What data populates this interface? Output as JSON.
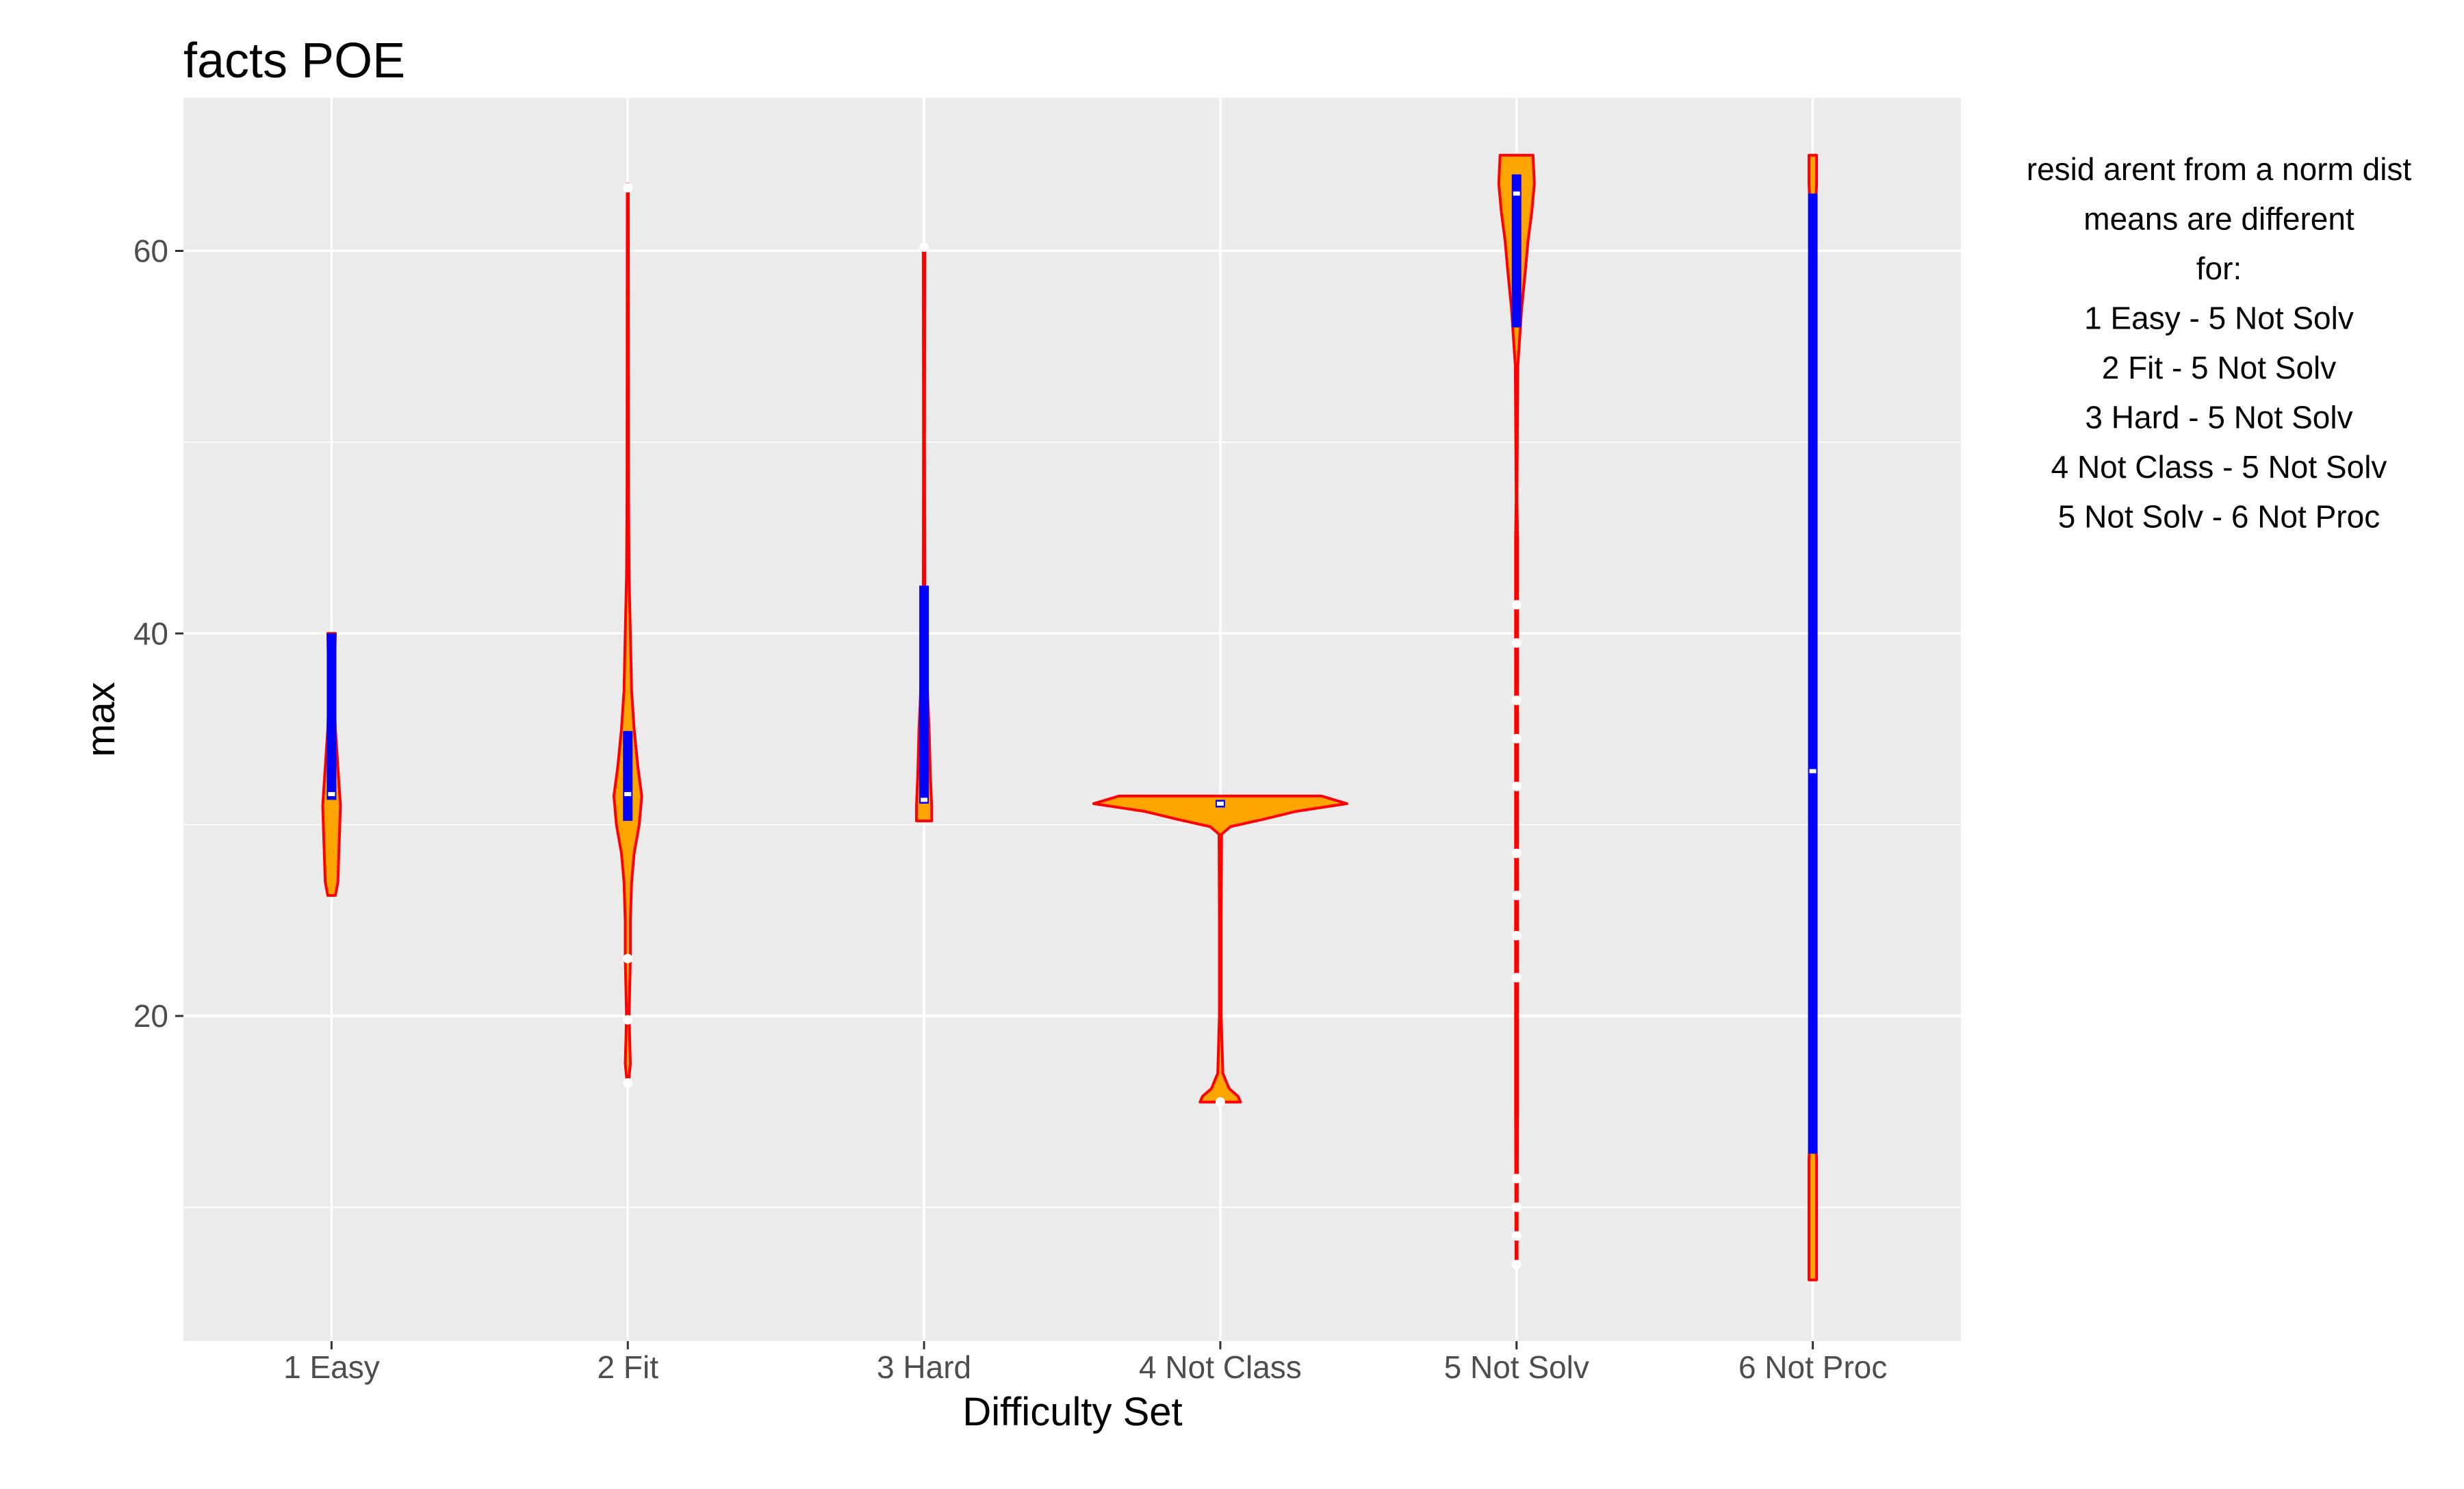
{
  "chart_data": {
    "type": "violin",
    "title": "facts POE",
    "xlabel": "Difficulty Set",
    "ylabel": "max",
    "ylim": [
      3,
      68
    ],
    "y_ticks": [
      20,
      40,
      60
    ],
    "grid": true,
    "categories": [
      "1 Easy",
      "2 Fit",
      "3 Hard",
      "4 Not Class",
      "5 Not Solv",
      "6 Not Proc"
    ],
    "violins": [
      {
        "category": "1 Easy",
        "min": 26.3,
        "max": 40,
        "profile": [
          [
            26.3,
            0.03
          ],
          [
            27,
            0.05
          ],
          [
            29,
            0.06
          ],
          [
            31,
            0.07
          ],
          [
            33,
            0.05
          ],
          [
            35,
            0.03
          ],
          [
            37,
            0.02
          ],
          [
            40,
            0.03
          ]
        ],
        "box": {
          "q1": 31.3,
          "median": 31.6,
          "q3": 40
        },
        "outliers": []
      },
      {
        "category": "2 Fit",
        "min": 16.5,
        "max": 63.5,
        "profile": [
          [
            16.5,
            0.005
          ],
          [
            17.5,
            0.02
          ],
          [
            20,
            0.01
          ],
          [
            23,
            0.02
          ],
          [
            25,
            0.02
          ],
          [
            27,
            0.03
          ],
          [
            28.5,
            0.05
          ],
          [
            30,
            0.09
          ],
          [
            31.5,
            0.11
          ],
          [
            33,
            0.08
          ],
          [
            35,
            0.05
          ],
          [
            37,
            0.03
          ],
          [
            40,
            0.02
          ],
          [
            43,
            0.01
          ],
          [
            47,
            0.006
          ],
          [
            55,
            0.005
          ],
          [
            63.5,
            0.004
          ]
        ],
        "box": {
          "q1": 30.2,
          "median": 31.6,
          "q3": 34.9
        },
        "outliers": [
          16.5,
          19.8,
          23,
          63.3
        ]
      },
      {
        "category": "3 Hard",
        "min": 30.2,
        "max": 60.3,
        "profile": [
          [
            30.2,
            0.06
          ],
          [
            31,
            0.06
          ],
          [
            32.5,
            0.05
          ],
          [
            35,
            0.04
          ],
          [
            38,
            0.02
          ],
          [
            42,
            0.006
          ],
          [
            50,
            0.004
          ],
          [
            60,
            0.006
          ]
        ],
        "box": {
          "q1": 31.1,
          "median": 31.3,
          "q3": 42.5
        },
        "outliers": [
          60.2
        ]
      },
      {
        "category": "4 Not Class",
        "min": 15.5,
        "max": 31.5,
        "profile": [
          [
            15.5,
            0.16
          ],
          [
            15.8,
            0.14
          ],
          [
            16.2,
            0.07
          ],
          [
            17,
            0.02
          ],
          [
            20,
            0.007
          ],
          [
            25,
            0.007
          ],
          [
            29.5,
            0.01
          ],
          [
            29.9,
            0.08
          ],
          [
            30.3,
            0.35
          ],
          [
            30.7,
            0.6
          ],
          [
            31.1,
            1.0
          ],
          [
            31.5,
            0.8
          ]
        ],
        "box": {
          "q1": 30.9,
          "median": 31.1,
          "q3": 31.3
        },
        "outliers": [
          15.5
        ]
      },
      {
        "category": "5 Not Solv",
        "min": 7,
        "max": 65,
        "profile": [
          [
            7,
            0.004
          ],
          [
            15,
            0.008
          ],
          [
            25,
            0.008
          ],
          [
            35,
            0.008
          ],
          [
            45,
            0.008
          ],
          [
            47,
            0.003
          ],
          [
            54,
            0.01
          ],
          [
            57,
            0.04
          ],
          [
            59,
            0.07
          ],
          [
            60.5,
            0.09
          ],
          [
            62,
            0.12
          ],
          [
            63.5,
            0.14
          ],
          [
            65,
            0.13
          ]
        ],
        "box": {
          "q1": 56,
          "median": 63,
          "q3": 64
        },
        "outliers": [
          7,
          8.5,
          10,
          11.5,
          22,
          24.2,
          26.3,
          28.5,
          32,
          34.5,
          36.5,
          39.5,
          41.5
        ]
      },
      {
        "category": "6 Not Proc",
        "min": 6.2,
        "max": 65,
        "profile": [
          [
            6.2,
            0.03
          ],
          [
            12.5,
            0.03
          ],
          [
            14,
            0.02
          ],
          [
            62,
            0.02
          ],
          [
            63.5,
            0.03
          ],
          [
            65,
            0.03
          ]
        ],
        "box": {
          "q1": 12.8,
          "median": 32.8,
          "q3": 63
        },
        "outliers": []
      }
    ],
    "annotation": [
      "resid arent from a norm dist",
      "means are different",
      "for:",
      "1 Easy - 5 Not Solv",
      "2 Fit - 5 Not Solv",
      "3 Hard - 5 Not Solv",
      "4 Not Class - 5 Not Solv",
      "5 Not Solv - 6 Not Proc"
    ],
    "colors": {
      "panel_bg": "#ebebeb",
      "grid": "#ffffff",
      "violin_fill": "#ffa500",
      "violin_outline": "#ff0000",
      "box": "#0000ff",
      "outlier": "#ffffff",
      "tick_text": "#4d4d4d",
      "axis_text": "#000000"
    }
  }
}
